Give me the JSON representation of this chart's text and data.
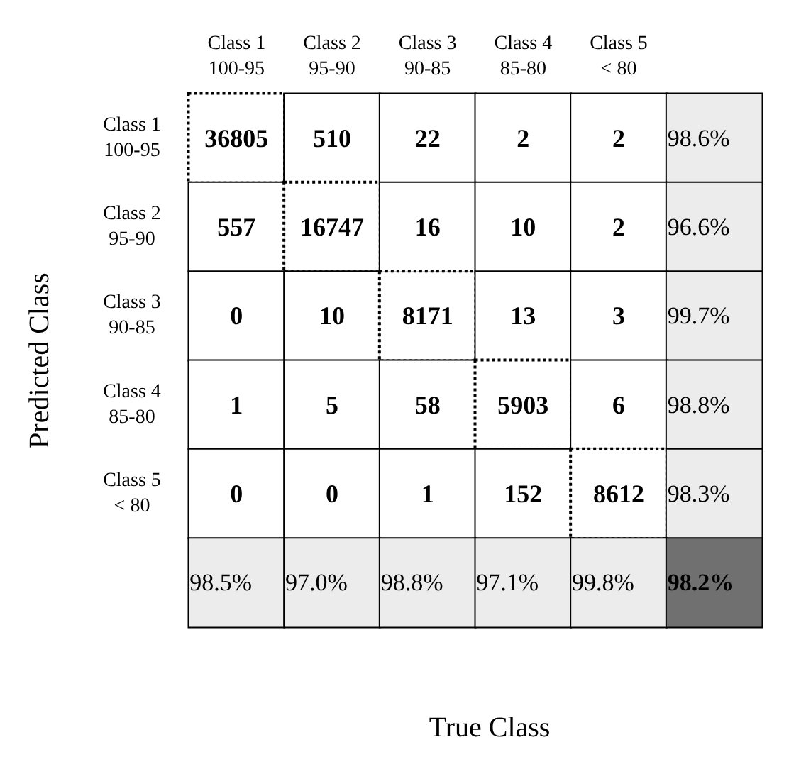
{
  "chart_data": {
    "type": "heatmap",
    "xlabel": "True Class",
    "ylabel": "Predicted Class",
    "categories": [
      "Class 1\n100-95",
      "Class 2\n95-90",
      "Class 3\n90-85",
      "Class 4\n85-80",
      "Class 5\n< 80",
      null
    ],
    "y_categories": [
      "Class 1\n100-95",
      "Class 2\n95-90",
      "Class 3\n90-85",
      "Class 4\n85-80",
      "Class 5\n< 80",
      null
    ],
    "cells": [
      [
        36805,
        510,
        22,
        2,
        2,
        98.6
      ],
      [
        557,
        16747,
        16,
        10,
        2,
        96.6
      ],
      [
        0,
        10,
        8171,
        13,
        3,
        99.7
      ],
      [
        1,
        5,
        58,
        5903,
        6,
        98.8
      ],
      [
        0,
        0,
        1,
        152,
        8612,
        98.3
      ],
      [
        98.5,
        97.0,
        98.8,
        97.1,
        99.8,
        98.2
      ]
    ],
    "cell_labels": [
      [
        "36805",
        "510",
        "22",
        "2",
        "2",
        "98.6%"
      ],
      [
        "557",
        "16747",
        "16",
        "10",
        "2",
        "96.6%"
      ],
      [
        "0",
        "10",
        "8171",
        "13",
        "3",
        "99.7%"
      ],
      [
        "1",
        "5",
        "58",
        "5903",
        "6",
        "98.8%"
      ],
      [
        "0",
        "0",
        "1",
        "152",
        "8612",
        "98.3%"
      ],
      [
        "98.5%",
        "97.0%",
        "98.8%",
        "97.1%",
        "99.8%",
        "98.2%"
      ]
    ],
    "data_labels": true
  }
}
